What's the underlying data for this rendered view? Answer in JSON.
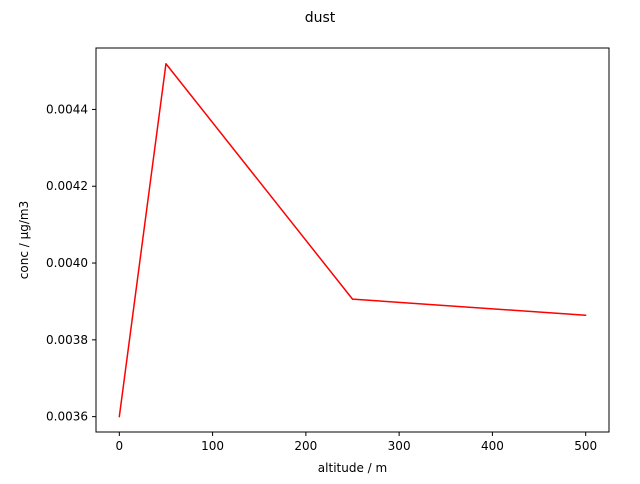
{
  "chart_data": {
    "type": "line",
    "title": "dust",
    "xlabel": "altitude / m",
    "ylabel": "conc / µg/m3",
    "xlim": [
      -25,
      525
    ],
    "ylim": [
      0.00356,
      0.00456
    ],
    "x_ticks": [
      0,
      100,
      200,
      300,
      400,
      500
    ],
    "x_tick_labels": [
      "0",
      "100",
      "200",
      "300",
      "400",
      "500"
    ],
    "y_ticks": [
      0.0036,
      0.0038,
      0.004,
      0.0042,
      0.0044
    ],
    "y_tick_labels": [
      "0.0036",
      "0.0038",
      "0.0040",
      "0.0042",
      "0.0044"
    ],
    "grid": false,
    "series": [
      {
        "x": [
          0,
          50,
          250,
          500
        ],
        "values": [
          0.0036,
          0.004519,
          0.003906,
          0.003864
        ],
        "color": "#ff0000"
      }
    ]
  }
}
